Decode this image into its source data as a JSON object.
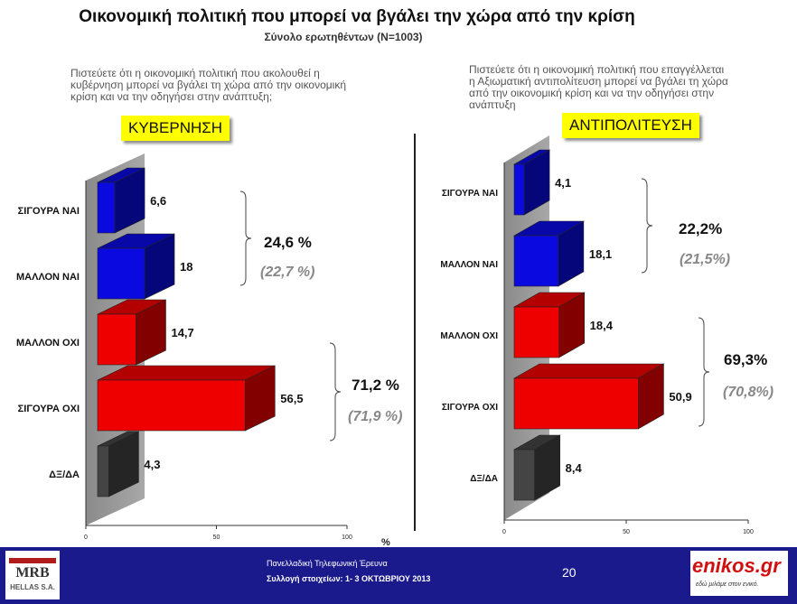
{
  "page": {
    "title": "Οικονομική πολιτική που μπορεί να βγάλει την χώρα από την κρίση",
    "subtitle": "Σύνολο ερωτηθέντων (N=1003)",
    "percent_sign": "%"
  },
  "left_panel": {
    "question": [
      "Πιστεύετε ότι η οικονομική πολιτική που ακολουθεί η",
      "κυβέρνηση μπορεί να βγάλει τη χώρα από την οικονομική",
      "κρίση και να την οδηγήσει στην ανάπτυξη;"
    ],
    "badge": "ΚΥΒΕΡΝΗΣΗ",
    "yes_group": {
      "total": "24,6 %",
      "previous": "(22,7 %)"
    },
    "no_group": {
      "total": "71,2 %",
      "previous": "(71,9 %)"
    }
  },
  "right_panel": {
    "question": [
      "Πιστεύετε ότι η οικονομική πολιτική που επαγγέλλεται",
      "η  Αξιωματική αντιπολίτευση μπορεί να βγάλει τη χώρα",
      "από την οικονομική κρίση και να την οδηγήσει στην",
      "ανάπτυξη"
    ],
    "badge": "ΑΝΤΙΠΟΛΙΤΕΥΣΗ",
    "yes_group": {
      "total": "22,2%",
      "previous": "(21,5%)"
    },
    "no_group": {
      "total": "69,3%",
      "previous": "(70,8%)"
    }
  },
  "chart_data": [
    {
      "type": "bar",
      "orientation": "horizontal",
      "categories": [
        "ΣΙΓΟΥΡΑ ΝΑΙ",
        "ΜΑΛΛΟΝ ΝΑΙ",
        "ΜΑΛΛΟΝ ΟΧΙ",
        "ΣΙΓΟΥΡΑ ΟΧΙ",
        "ΔΞ/ΔΑ"
      ],
      "values": [
        6.6,
        18,
        14.7,
        56.5,
        4.3
      ],
      "value_labels": [
        "6,6",
        "18",
        "14,7",
        "56,5",
        "4,3"
      ],
      "colors": [
        "#0a0ae0",
        "#0a0ae0",
        "#ee0000",
        "#ee0000",
        "#444444"
      ],
      "xlim": [
        0,
        100
      ],
      "xticks": [
        "0",
        "50",
        "100"
      ]
    },
    {
      "type": "bar",
      "orientation": "horizontal",
      "categories": [
        "ΣΙΓΟΥΡΑ ΝΑΙ",
        "ΜΑΛΛΟΝ ΝΑΙ",
        "ΜΑΛΛΟΝ ΟΧΙ",
        "ΣΙΓΟΥΡΑ ΟΧΙ",
        "ΔΞ/ΔΑ"
      ],
      "values": [
        4.1,
        18.1,
        18.4,
        50.9,
        8.4
      ],
      "value_labels": [
        "4,1",
        "18,1",
        "18,4",
        "50,9",
        "8,4"
      ],
      "colors": [
        "#0a0ae0",
        "#0a0ae0",
        "#ee0000",
        "#ee0000",
        "#444444"
      ],
      "xlim": [
        0,
        100
      ],
      "xticks": [
        "0",
        "50",
        "100"
      ]
    }
  ],
  "footer": {
    "survey": "Πανελλαδική Τηλεφωνική Έρευνα",
    "dates": "Συλλογή στοιχείων: 1- 3 ΟΚΤΩΒΡΙΟΥ 2013",
    "page_number": "20",
    "left_logo": "MRB",
    "left_logo_sub": "HELLAS S.A.",
    "right_logo": "enikos.gr",
    "right_logo_tag": "εδώ μιλάμε στον ενικό."
  }
}
